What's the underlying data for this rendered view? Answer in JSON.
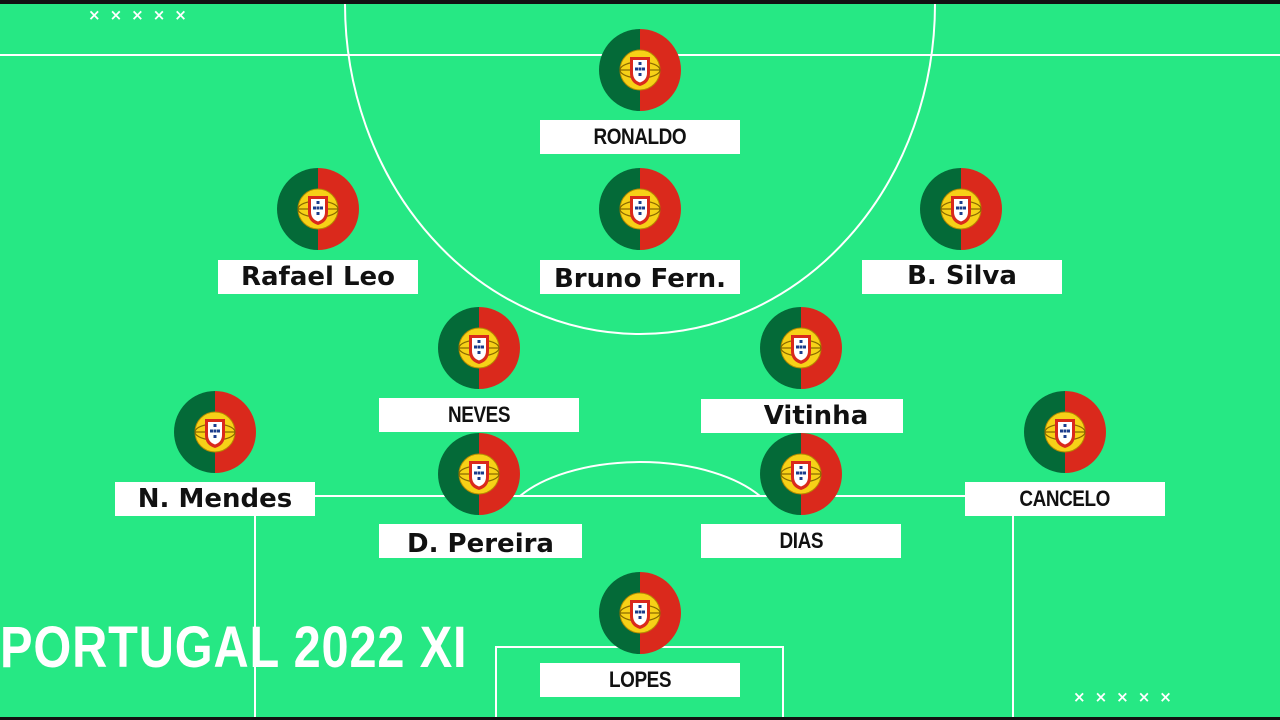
{
  "title": "PORTUGAL 2022 XI",
  "decorations": {
    "crosses_top": "×××××",
    "crosses_bottom": "×××××"
  },
  "flag": {
    "icon": "portugal-flag-icon",
    "green": "#046a38",
    "red": "#da291c",
    "shield": "#ffffff"
  },
  "colors": {
    "pitch": "#26e884",
    "lines": "#ffffff",
    "label_bg": "#ffffff",
    "text": "#111111"
  },
  "players": [
    {
      "id": "ronaldo",
      "name": "RONALDO"
    },
    {
      "id": "rafael-leao",
      "name": "Rafael Leo"
    },
    {
      "id": "bruno-fernandes",
      "name": "Bruno Fern."
    },
    {
      "id": "bernardo-silva",
      "name": "B. Silva"
    },
    {
      "id": "neves",
      "name": "NEVES"
    },
    {
      "id": "vitinha",
      "name": "Vitinha"
    },
    {
      "id": "nuno-mendes",
      "name": "N. Mendes"
    },
    {
      "id": "danilo-pereira",
      "name": "D. Pereira"
    },
    {
      "id": "dias",
      "name": "DIAS"
    },
    {
      "id": "cancelo",
      "name": "CANCELO"
    },
    {
      "id": "lopes",
      "name": "LOPES"
    }
  ]
}
